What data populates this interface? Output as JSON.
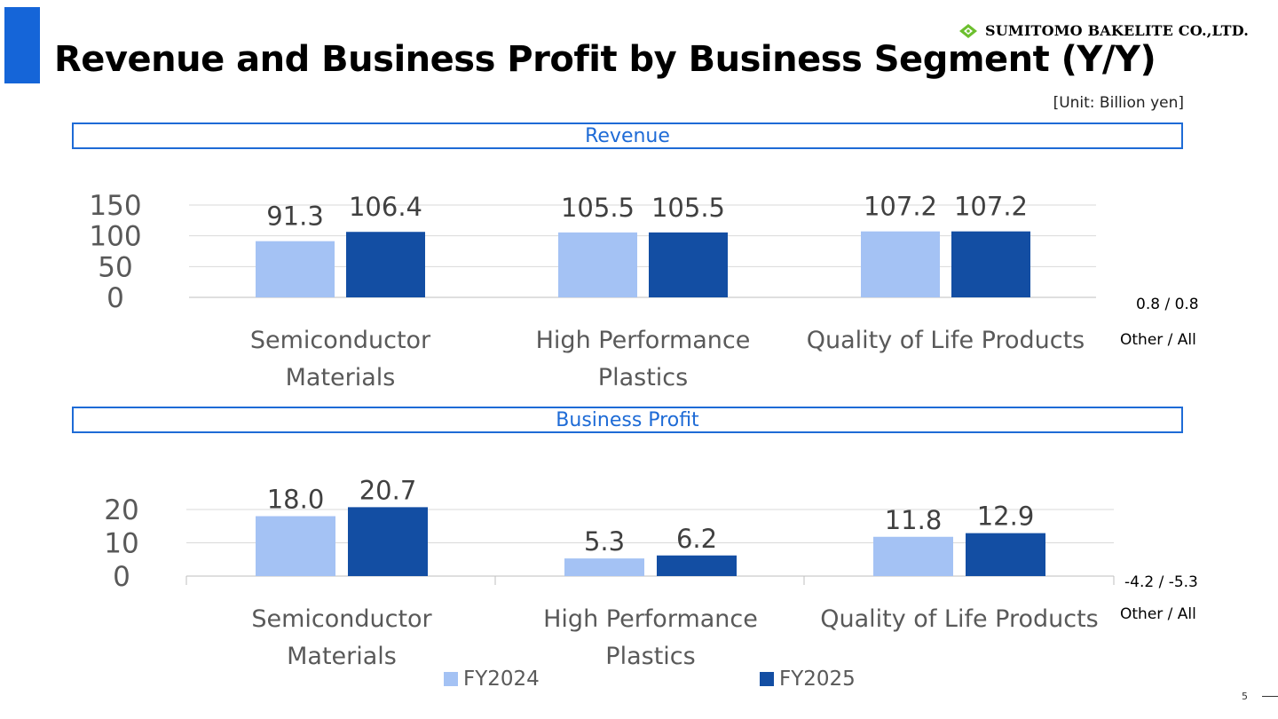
{
  "slide": {
    "title": "Revenue and Business Profit by Business Segment (Y/Y)",
    "company": "SUMITOMO BAKELITE CO.,LTD.",
    "unit": "[Unit: Billion yen]",
    "page_number": "5",
    "accent_color": "#1565d8",
    "logo_color": "#6cbf2e"
  },
  "sections": {
    "revenue": "Revenue",
    "profit": "Business Profit"
  },
  "notes": {
    "revenue_value": "0.8 / 0.8",
    "revenue_label": "Other / All",
    "profit_value": "-4.2 / -5.3",
    "profit_label": "Other / All"
  },
  "legend": [
    {
      "name": "FY2024",
      "color": "#a4c2f4"
    },
    {
      "name": "FY2025",
      "color": "#134ea3"
    }
  ],
  "chart_data": [
    {
      "type": "bar",
      "title": "Revenue",
      "categories": [
        [
          "Semiconductor",
          "Materials"
        ],
        [
          "High Performance",
          "Plastics"
        ],
        [
          "Quality of Life Products"
        ]
      ],
      "series": [
        {
          "name": "FY2024",
          "values": [
            91.3,
            105.5,
            107.2
          ],
          "labels": [
            "91.3",
            "105.5",
            "107.2"
          ],
          "color": "#a4c2f4"
        },
        {
          "name": "FY2025",
          "values": [
            106.4,
            105.5,
            107.2
          ],
          "labels": [
            "106.4",
            "105.5",
            "107.2"
          ],
          "color": "#134ea3"
        }
      ],
      "yticks": [
        0,
        50,
        100,
        150
      ],
      "ylim": [
        0,
        150
      ],
      "grid": true
    },
    {
      "type": "bar",
      "title": "Business Profit",
      "categories": [
        [
          "Semiconductor",
          "Materials"
        ],
        [
          "High Performance",
          "Plastics"
        ],
        [
          "Quality of Life Products"
        ]
      ],
      "series": [
        {
          "name": "FY2024",
          "values": [
            18.0,
            5.3,
            11.8
          ],
          "labels": [
            "18.0",
            "5.3",
            "11.8"
          ],
          "color": "#a4c2f4"
        },
        {
          "name": "FY2025",
          "values": [
            20.7,
            6.2,
            12.9
          ],
          "labels": [
            "20.7",
            "6.2",
            "12.9"
          ],
          "color": "#134ea3"
        }
      ],
      "yticks": [
        0,
        10,
        20
      ],
      "ylim": [
        0,
        20
      ],
      "grid": true
    }
  ]
}
